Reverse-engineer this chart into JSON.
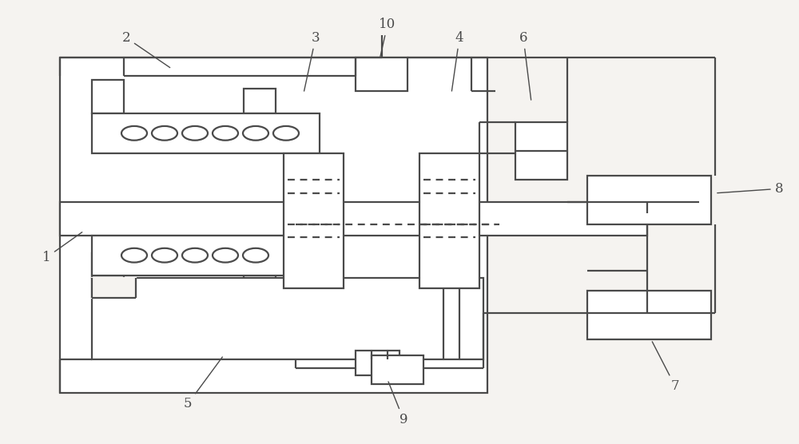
{
  "bg_color": "#f5f3f0",
  "line_color": "#4a4a4a",
  "lw": 1.6,
  "fig_width": 10.0,
  "fig_height": 5.56,
  "dpi": 100,
  "label_fs": 12,
  "label_data": {
    "1": [
      0.058,
      0.42,
      0.105,
      0.48
    ],
    "2": [
      0.158,
      0.915,
      0.215,
      0.845
    ],
    "3": [
      0.395,
      0.915,
      0.38,
      0.79
    ],
    "4": [
      0.575,
      0.915,
      0.565,
      0.79
    ],
    "5": [
      0.235,
      0.09,
      0.28,
      0.2
    ],
    "6": [
      0.655,
      0.915,
      0.665,
      0.77
    ],
    "7": [
      0.845,
      0.13,
      0.815,
      0.235
    ],
    "8": [
      0.975,
      0.575,
      0.895,
      0.565
    ],
    "9": [
      0.505,
      0.055,
      0.485,
      0.145
    ],
    "10": [
      0.485,
      0.945,
      0.475,
      0.865
    ]
  }
}
